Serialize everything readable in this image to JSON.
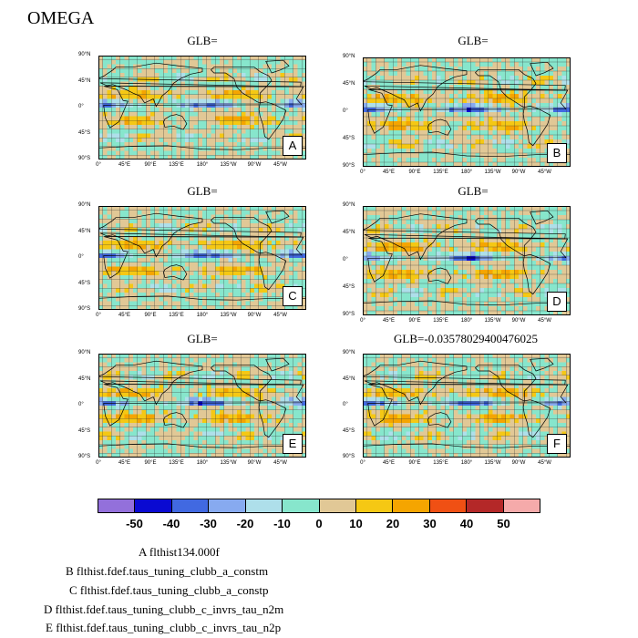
{
  "title": "OMEGA",
  "chart_data": {
    "type": "heatmap",
    "variable": "OMEGA",
    "panels": [
      {
        "id": "A",
        "title": "GLB=",
        "label": "A"
      },
      {
        "id": "B",
        "title": "GLB=",
        "label": "B"
      },
      {
        "id": "C",
        "title": "GLB=",
        "label": "C"
      },
      {
        "id": "D",
        "title": "GLB=",
        "label": "D"
      },
      {
        "id": "E",
        "title": "GLB=",
        "label": "E"
      },
      {
        "id": "F",
        "title": "GLB=-0.0357802940047­6025",
        "label": "F"
      }
    ],
    "lat_ticks": [
      "90°N",
      "45°N",
      "0°",
      "45°S",
      "90°S"
    ],
    "lon_ticks": [
      "0°",
      "45°E",
      "90°E",
      "135°E",
      "180°",
      "135°W",
      "90°W",
      "45°W"
    ],
    "colorbar": {
      "levels": [
        "-50",
        "-40",
        "-30",
        "-20",
        "-10",
        "0",
        "10",
        "20",
        "30",
        "40",
        "50"
      ],
      "colors": [
        "#9370db",
        "#0a0ad2",
        "#4169e1",
        "#87aaf0",
        "#aedfea",
        "#87e6cc",
        "#e1c896",
        "#f5c814",
        "#f5a500",
        "#f05014",
        "#b42828",
        "#f5aaaa"
      ]
    },
    "legend": [
      "A  flthist134.000f",
      "B  flthist.fdef.taus_tuning_clubb_a_constm",
      "C  flthist.fdef.taus_tuning_clubb_a_constp",
      "D  flthist.fdef.taus_tuning_clubb_c_invrs_tau_n2m",
      "E  flthist.fdef.taus_tuning_clubb_c_invrs_tau_n2p"
    ]
  }
}
